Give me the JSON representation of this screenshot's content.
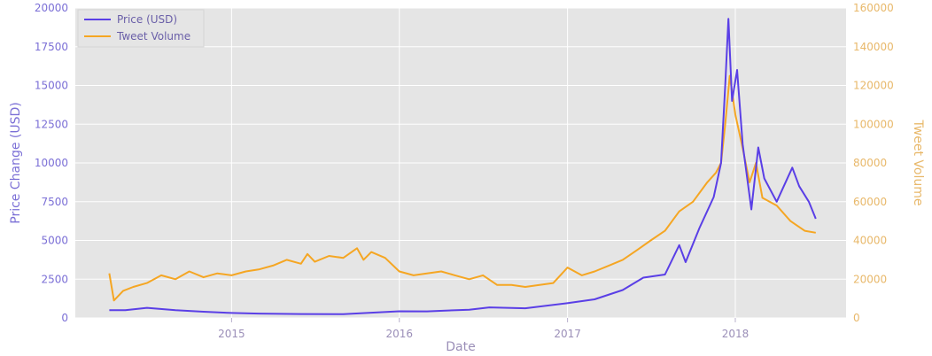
{
  "chart_data": {
    "type": "line",
    "title": "",
    "xlabel": "Date",
    "ylabel_left": "Price Change (USD)",
    "ylabel_right": "Tweet Volume",
    "grid": true,
    "legend_placement": "top-left",
    "x_ticks": [
      "2015",
      "2016",
      "2017",
      "2018"
    ],
    "y_left_ticks": [
      0,
      2500,
      5000,
      7500,
      10000,
      12500,
      15000,
      17500,
      20000
    ],
    "y_right_ticks": [
      0,
      20000,
      40000,
      60000,
      80000,
      100000,
      120000,
      140000,
      160000
    ],
    "ylim_left": [
      0,
      20000
    ],
    "ylim_right": [
      0,
      160000
    ],
    "xlim": [
      "2014-01-26",
      "2018-08-30"
    ],
    "colors": {
      "price": "#5a3fe6",
      "tweets": "#f5a623",
      "background": "#e5e5e5",
      "grid": "#ffffff"
    },
    "series": [
      {
        "name": "Price (USD)",
        "axis": "left",
        "x": [
          "2014-04-10",
          "2014-05-15",
          "2014-07-01",
          "2014-09-01",
          "2014-11-01",
          "2015-01-01",
          "2015-03-01",
          "2015-06-01",
          "2015-09-01",
          "2015-11-10",
          "2016-01-01",
          "2016-03-01",
          "2016-06-01",
          "2016-07-15",
          "2016-10-01",
          "2016-12-31",
          "2017-03-01",
          "2017-05-01",
          "2017-06-15",
          "2017-08-01",
          "2017-09-01",
          "2017-09-15",
          "2017-10-15",
          "2017-11-15",
          "2017-12-01",
          "2017-12-10",
          "2017-12-17",
          "2017-12-25",
          "2018-01-05",
          "2018-01-17",
          "2018-02-05",
          "2018-02-20",
          "2018-03-05",
          "2018-04-01",
          "2018-05-05",
          "2018-05-20",
          "2018-06-10",
          "2018-06-25"
        ],
        "values": [
          500,
          500,
          650,
          500,
          400,
          320,
          280,
          250,
          240,
          350,
          430,
          420,
          530,
          680,
          620,
          950,
          1200,
          1800,
          2600,
          2800,
          4700,
          3600,
          5800,
          7800,
          10000,
          15000,
          19300,
          14000,
          16000,
          11200,
          7000,
          11000,
          9000,
          7500,
          9700,
          8500,
          7500,
          6400
        ]
      },
      {
        "name": "Tweet Volume",
        "axis": "right",
        "x": [
          "2014-04-10",
          "2014-04-20",
          "2014-05-10",
          "2014-06-01",
          "2014-07-01",
          "2014-08-01",
          "2014-09-01",
          "2014-10-01",
          "2014-11-01",
          "2014-12-01",
          "2015-01-01",
          "2015-02-01",
          "2015-03-01",
          "2015-04-01",
          "2015-05-01",
          "2015-06-01",
          "2015-06-15",
          "2015-07-01",
          "2015-08-01",
          "2015-09-01",
          "2015-10-01",
          "2015-10-15",
          "2015-11-01",
          "2015-12-01",
          "2016-01-01",
          "2016-02-01",
          "2016-03-01",
          "2016-04-01",
          "2016-05-01",
          "2016-06-01",
          "2016-07-01",
          "2016-08-01",
          "2016-09-01",
          "2016-10-01",
          "2016-11-01",
          "2016-12-01",
          "2017-01-01",
          "2017-02-01",
          "2017-03-01",
          "2017-04-01",
          "2017-05-01",
          "2017-06-01",
          "2017-07-01",
          "2017-08-01",
          "2017-09-01",
          "2017-10-01",
          "2017-11-01",
          "2017-11-20",
          "2017-12-01",
          "2017-12-10",
          "2017-12-20",
          "2018-01-01",
          "2018-01-15",
          "2018-02-01",
          "2018-02-15",
          "2018-03-01",
          "2018-04-01",
          "2018-05-01",
          "2018-06-01",
          "2018-06-25"
        ],
        "values": [
          23000,
          9000,
          14000,
          16000,
          18000,
          22000,
          20000,
          24000,
          21000,
          23000,
          22000,
          24000,
          25000,
          27000,
          30000,
          28000,
          33000,
          29000,
          32000,
          31000,
          36000,
          30000,
          34000,
          31000,
          24000,
          22000,
          23000,
          24000,
          22000,
          20000,
          22000,
          17000,
          17000,
          16000,
          17000,
          18000,
          26000,
          22000,
          24000,
          27000,
          30000,
          35000,
          40000,
          45000,
          55000,
          60000,
          70000,
          75000,
          80000,
          100000,
          125000,
          105000,
          90000,
          70000,
          80000,
          62000,
          58000,
          50000,
          45000,
          44000
        ]
      }
    ]
  }
}
